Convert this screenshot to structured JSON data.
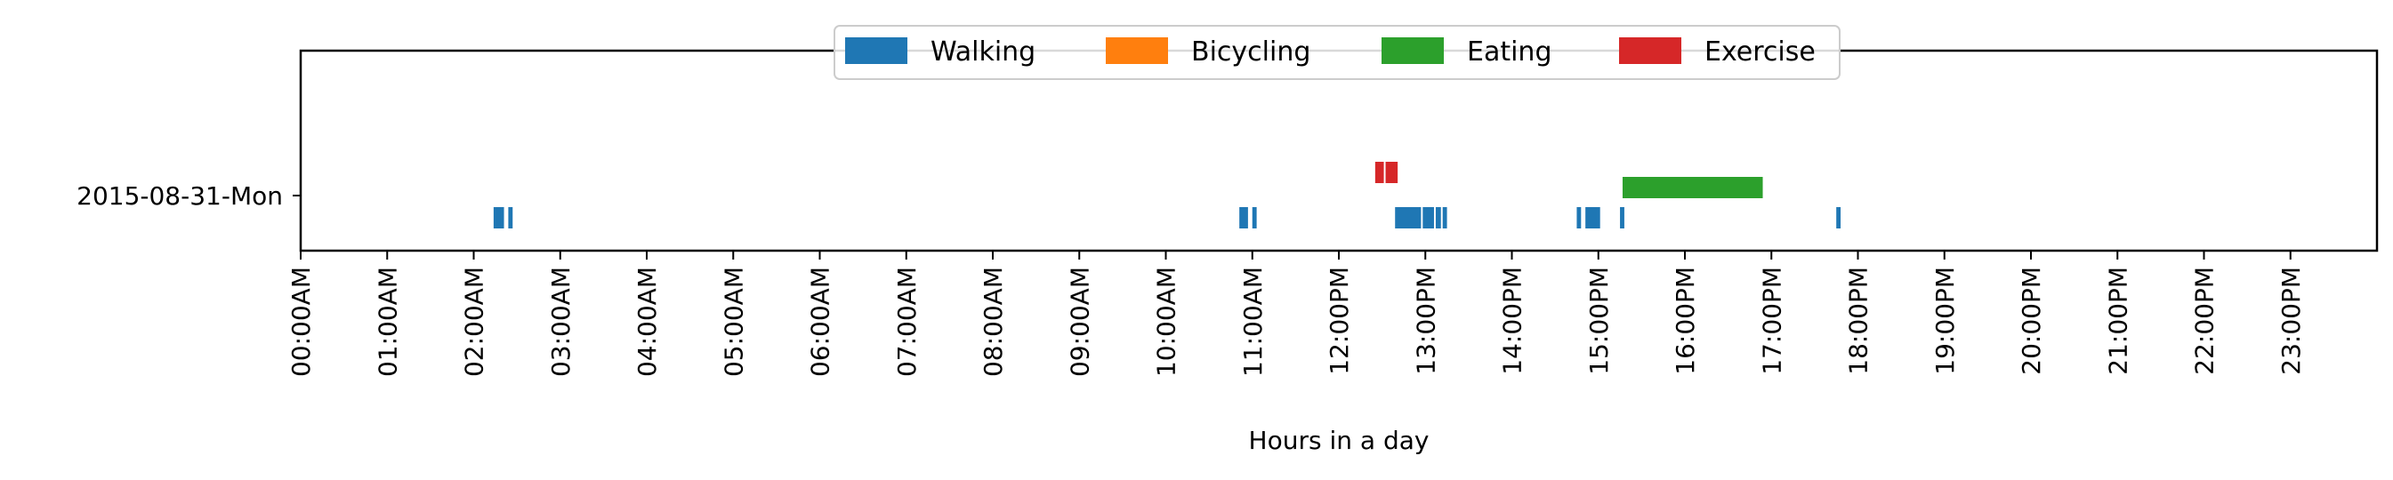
{
  "chart_data": {
    "type": "broken_barh",
    "title": "",
    "xlabel": "Hours in a day",
    "ylabel": "",
    "xlim": [
      0,
      24
    ],
    "x_ticks": [
      "00:00AM",
      "01:00AM",
      "02:00AM",
      "03:00AM",
      "04:00AM",
      "05:00AM",
      "06:00AM",
      "07:00AM",
      "08:00AM",
      "09:00AM",
      "10:00AM",
      "11:00AM",
      "12:00PM",
      "13:00PM",
      "14:00PM",
      "15:00PM",
      "16:00PM",
      "17:00PM",
      "18:00PM",
      "19:00PM",
      "20:00PM",
      "21:00PM",
      "22:00PM",
      "23:00PM"
    ],
    "y_categories": [
      "2015-08-31-Mon"
    ],
    "legend_position": "top-center",
    "grid": false,
    "series": [
      {
        "name": "Walking",
        "color": "#1f77b4",
        "lane": "below",
        "intervals": [
          [
            2.23,
            2.35
          ],
          [
            2.4,
            2.45
          ],
          [
            10.85,
            10.95
          ],
          [
            11.0,
            11.05
          ],
          [
            12.65,
            12.95
          ],
          [
            12.97,
            13.1
          ],
          [
            13.12,
            13.18
          ],
          [
            13.2,
            13.25
          ],
          [
            14.75,
            14.8
          ],
          [
            14.85,
            15.02
          ],
          [
            15.25,
            15.3
          ],
          [
            17.75,
            17.8
          ]
        ]
      },
      {
        "name": "Bicycling",
        "color": "#ff7f0e",
        "lane": "below",
        "intervals": []
      },
      {
        "name": "Eating",
        "color": "#2ca02c",
        "lane": "above",
        "intervals": [
          [
            15.28,
            16.9
          ]
        ]
      },
      {
        "name": "Exercise",
        "color": "#d62728",
        "lane": "upper",
        "intervals": [
          [
            12.42,
            12.52
          ],
          [
            12.54,
            12.68
          ]
        ]
      }
    ]
  }
}
